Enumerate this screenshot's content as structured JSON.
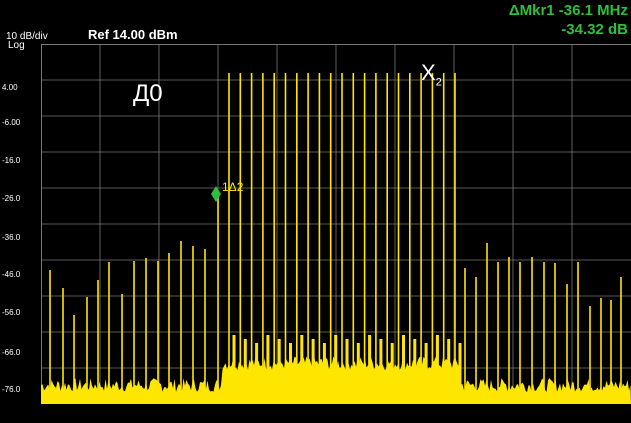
{
  "header": {
    "scale": "10 dB/div",
    "log": "Log",
    "ref": "Ref 14.00 dBm"
  },
  "marker_readout": {
    "delta_freq": "ΔMkr1 -36.1 MHz",
    "delta_amp": "-34.32 dB"
  },
  "y_axis": {
    "labels": [
      "4.00",
      "-6.00",
      "-16.0",
      "-26.0",
      "-36.0",
      "-46.0",
      "-56.0",
      "-66.0",
      "-76.0"
    ]
  },
  "marker": {
    "label": "1Δ2",
    "color": "#2fbf3a"
  },
  "annotations": {
    "left": "Д0",
    "right_main": "X",
    "right_sub": "2"
  },
  "colors": {
    "trace": "#ffe600",
    "marker": "#2fbf3a",
    "grid": "#777777",
    "background": "#000000"
  }
}
